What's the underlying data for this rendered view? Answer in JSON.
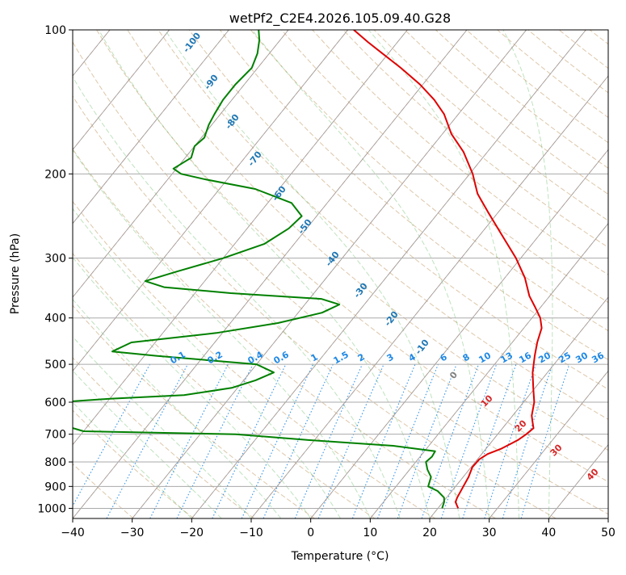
{
  "chart_data": {
    "type": "line",
    "title": "wetPf2_C2E4.2026.105.09.40.G28",
    "xlabel": "Temperature (°C)",
    "ylabel": "Pressure (hPa)",
    "xlim": [
      -40,
      50
    ],
    "ylim": [
      1050,
      100
    ],
    "y_scale": "log",
    "grid": true,
    "x_ticks": [
      -40,
      -30,
      -20,
      -10,
      0,
      10,
      20,
      30,
      40,
      50
    ],
    "y_ticks": [
      100,
      200,
      300,
      400,
      500,
      600,
      700,
      800,
      900,
      1000
    ],
    "dry_adiabat_labels": [
      -100,
      -90,
      -80,
      -70,
      -60,
      -50,
      -40,
      -30,
      -20,
      -10,
      0
    ],
    "moist_adiabat_labels": [
      10,
      20,
      30,
      40
    ],
    "mixing_ratio_labels": [
      "0.1",
      "0.2",
      "0.4",
      "0.6",
      "1",
      "1.5",
      "2",
      "3",
      "4",
      "6",
      "8",
      "10",
      "13",
      "16",
      "20",
      "25",
      "30",
      "36"
    ],
    "series": [
      {
        "color": "#e00000",
        "description": "temperature",
        "points": [
          [
            1000,
            23.4
          ],
          [
            970,
            22.1
          ],
          [
            950,
            21.8
          ],
          [
            900,
            21.3
          ],
          [
            860,
            20.9
          ],
          [
            820,
            20.2
          ],
          [
            790,
            20.3
          ],
          [
            770,
            21.0
          ],
          [
            750,
            22.6
          ],
          [
            720,
            24.2
          ],
          [
            700,
            24.8
          ],
          [
            680,
            25.2
          ],
          [
            660,
            24.2
          ],
          [
            640,
            23.2
          ],
          [
            600,
            21.8
          ],
          [
            560,
            19.7
          ],
          [
            520,
            17.5
          ],
          [
            480,
            15.6
          ],
          [
            450,
            14.2
          ],
          [
            420,
            13.0
          ],
          [
            400,
            11.4
          ],
          [
            380,
            9.1
          ],
          [
            360,
            6.6
          ],
          [
            330,
            3.4
          ],
          [
            300,
            -0.8
          ],
          [
            270,
            -6.0
          ],
          [
            240,
            -11.8
          ],
          [
            220,
            -16.0
          ],
          [
            200,
            -19.5
          ],
          [
            180,
            -24.0
          ],
          [
            165,
            -28.5
          ],
          [
            150,
            -32.4
          ],
          [
            140,
            -36.0
          ],
          [
            130,
            -40.5
          ],
          [
            120,
            -46.0
          ],
          [
            112,
            -51.0
          ],
          [
            106,
            -55.0
          ],
          [
            100,
            -59.0
          ]
        ]
      },
      {
        "color": "#008000",
        "description": "dewpoint",
        "points": [
          [
            1000,
            20.7
          ],
          [
            970,
            20.2
          ],
          [
            950,
            19.6
          ],
          [
            920,
            17.6
          ],
          [
            900,
            15.4
          ],
          [
            860,
            14.6
          ],
          [
            830,
            13.0
          ],
          [
            800,
            11.7
          ],
          [
            780,
            12.0
          ],
          [
            760,
            11.8
          ],
          [
            740,
            4.0
          ],
          [
            720,
            -11.0
          ],
          [
            700,
            -24.0
          ],
          [
            690,
            -50.0
          ],
          [
            645,
            -60.0
          ],
          [
            600,
            -58.0
          ],
          [
            590,
            -50.0
          ],
          [
            580,
            -38.0
          ],
          [
            560,
            -31.0
          ],
          [
            540,
            -28.0
          ],
          [
            520,
            -26.0
          ],
          [
            500,
            -30.0
          ],
          [
            480,
            -48.0
          ],
          [
            470,
            -56.0
          ],
          [
            450,
            -54.0
          ],
          [
            430,
            -41.0
          ],
          [
            410,
            -32.0
          ],
          [
            390,
            -26.0
          ],
          [
            375,
            -24.2
          ],
          [
            365,
            -28.0
          ],
          [
            355,
            -44.0
          ],
          [
            345,
            -56.0
          ],
          [
            335,
            -60.0
          ],
          [
            320,
            -56.0
          ],
          [
            300,
            -50.0
          ],
          [
            280,
            -45.0
          ],
          [
            260,
            -43.0
          ],
          [
            245,
            -42.5
          ],
          [
            230,
            -46.0
          ],
          [
            215,
            -54.0
          ],
          [
            205,
            -64.0
          ],
          [
            200,
            -68.5
          ],
          [
            195,
            -70.5
          ],
          [
            185,
            -69.0
          ],
          [
            175,
            -70.0
          ],
          [
            168,
            -69.5
          ],
          [
            158,
            -70.5
          ],
          [
            150,
            -71.0
          ],
          [
            140,
            -71.5
          ],
          [
            130,
            -71.5
          ],
          [
            120,
            -71.0
          ],
          [
            112,
            -72.0
          ],
          [
            105,
            -73.5
          ],
          [
            100,
            -75.0
          ]
        ]
      }
    ]
  }
}
